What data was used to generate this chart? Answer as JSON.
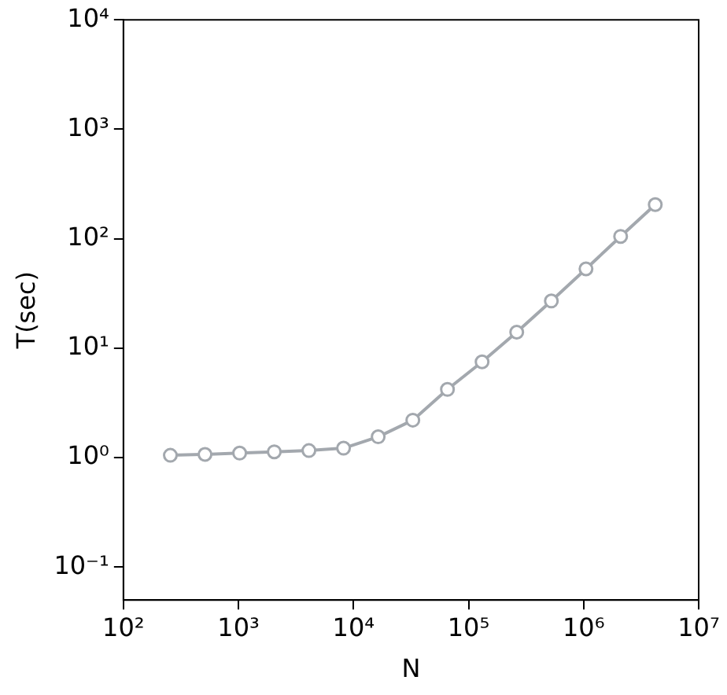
{
  "chart_data": {
    "type": "line",
    "xlabel": "N",
    "ylabel": "T(sec)",
    "log": "xy",
    "grid": false,
    "legend": false,
    "marker": "circle",
    "line_style": "solid",
    "x": [
      256,
      512,
      1024,
      2048,
      4096,
      8192,
      16384,
      32768,
      65536,
      131072,
      262144,
      524288,
      1048576,
      2097152,
      4194304
    ],
    "series": [
      {
        "color": "#a3a8ae",
        "values": [
          1.05,
          1.07,
          1.1,
          1.13,
          1.16,
          1.22,
          1.55,
          2.2,
          4.2,
          7.5,
          14,
          27,
          53,
          105,
          205
        ]
      }
    ],
    "xlim": [
      100,
      10000000
    ],
    "xticks": [
      {
        "value": 100,
        "label": "10²"
      },
      {
        "value": 1000,
        "label": "10³"
      },
      {
        "value": 10000,
        "label": "10⁴"
      },
      {
        "value": 100000,
        "label": "10⁵"
      },
      {
        "value": 1000000,
        "label": "10⁶"
      },
      {
        "value": 10000000,
        "label": "10⁷"
      }
    ],
    "ylim": [
      0.05,
      10000
    ],
    "yticks": [
      {
        "value": 0.1,
        "label": "10⁻¹"
      },
      {
        "value": 1,
        "label": "10⁰"
      },
      {
        "value": 10,
        "label": "10¹"
      },
      {
        "value": 100,
        "label": "10²"
      },
      {
        "value": 1000,
        "label": "10³"
      },
      {
        "value": 10000,
        "label": "10⁴"
      }
    ]
  }
}
